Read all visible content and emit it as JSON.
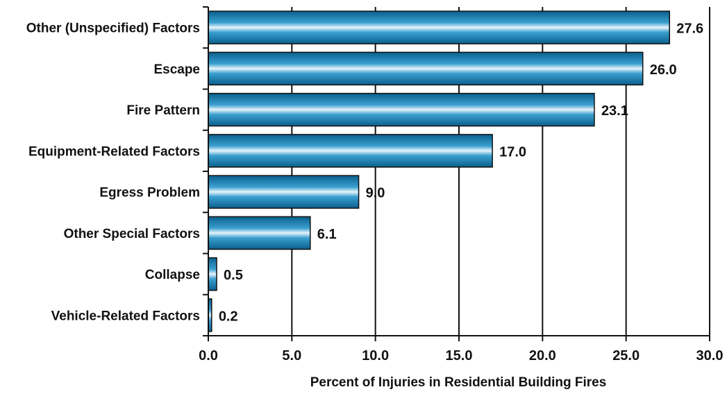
{
  "chart_data": {
    "type": "bar",
    "orientation": "horizontal",
    "categories": [
      "Other (Unspecified) Factors",
      "Escape",
      "Fire Pattern",
      "Equipment-Related Factors",
      "Egress Problem",
      "Other Special Factors",
      "Collapse",
      "Vehicle-Related Factors"
    ],
    "values": [
      27.6,
      26.0,
      23.1,
      17.0,
      9.0,
      6.1,
      0.5,
      0.2
    ],
    "value_labels": [
      "27.6",
      "26.0",
      "23.1",
      "17.0",
      "9.0",
      "6.1",
      "0.5",
      "0.2"
    ],
    "xlabel": "Percent of Injuries in Residential Building Fires",
    "ylabel": "",
    "xlim": [
      0,
      30
    ],
    "xticks": [
      0,
      5,
      10,
      15,
      20,
      25,
      30
    ],
    "xtick_labels": [
      "0.0",
      "5.0",
      "10.0",
      "15.0",
      "20.0",
      "25.0",
      "30.0"
    ],
    "grid": "vertical",
    "legend": "none",
    "colors": {
      "bar_dark": "#0a5f8c",
      "bar_mid": "#3a9fd0",
      "bar_light": "#e6f4fb",
      "bar_border": "#111111",
      "grid": "#111111"
    }
  }
}
